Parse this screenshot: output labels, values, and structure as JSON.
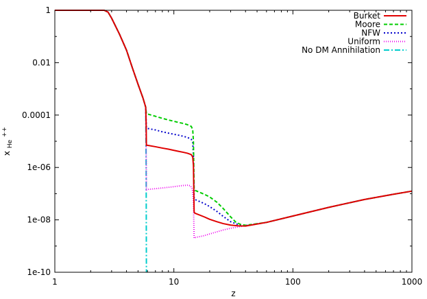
{
  "chart_data": {
    "type": "line",
    "title": "",
    "xlabel": "z",
    "ylabel_main": "x",
    "ylabel_sub": "He",
    "ylabel_sup": "++",
    "xscale": "log",
    "yscale": "log",
    "xlim": [
      1,
      1000
    ],
    "ylim": [
      1e-10,
      1
    ],
    "x_ticks": [
      1,
      10,
      100,
      1000
    ],
    "x_tick_labels": [
      "1",
      "10",
      "100",
      "1000"
    ],
    "y_ticks": [
      1e-10,
      1e-08,
      1e-06,
      0.0001,
      0.01,
      1
    ],
    "y_tick_labels": [
      "1e-10",
      "1e-08",
      "1e-06",
      "0.0001",
      "0.01",
      "1"
    ],
    "grid": false,
    "legend_position": "top-right",
    "series": [
      {
        "name": "Burket",
        "color": "#e00000",
        "dash": "solid",
        "points": [
          [
            1,
            1
          ],
          [
            2.0,
            1
          ],
          [
            2.6,
            1
          ],
          [
            2.8,
            0.85
          ],
          [
            3,
            0.5
          ],
          [
            3.5,
            0.12
          ],
          [
            4,
            0.03
          ],
          [
            4.5,
            0.006
          ],
          [
            5,
            0.0015
          ],
          [
            5.5,
            0.00045
          ],
          [
            5.8,
            0.0002
          ],
          [
            5.85,
            5e-05
          ],
          [
            5.88,
            7e-06
          ],
          [
            6,
            7e-06
          ],
          [
            7,
            6.2e-06
          ],
          [
            8,
            5.5e-06
          ],
          [
            9,
            5e-06
          ],
          [
            10,
            4.5e-06
          ],
          [
            11,
            4.1e-06
          ],
          [
            12,
            3.8e-06
          ],
          [
            13,
            3.5e-06
          ],
          [
            14,
            3.1e-06
          ],
          [
            14.4,
            2.5e-06
          ],
          [
            14.6,
            1.2e-06
          ],
          [
            14.8,
            2e-08
          ],
          [
            15,
            1.8e-08
          ],
          [
            18,
            1.3e-08
          ],
          [
            20,
            1.05e-08
          ],
          [
            23,
            8.5e-09
          ],
          [
            26,
            7.2e-09
          ],
          [
            30,
            6.3e-09
          ],
          [
            35,
            5.9e-09
          ],
          [
            40,
            5.8e-09
          ],
          [
            60,
            8e-09
          ],
          [
            100,
            1.4e-08
          ],
          [
            200,
            3e-08
          ],
          [
            400,
            6e-08
          ],
          [
            700,
            9.5e-08
          ],
          [
            1000,
            1.25e-07
          ]
        ]
      },
      {
        "name": "Moore",
        "color": "#00cc00",
        "dash": "5,3",
        "points": [
          [
            1,
            1
          ],
          [
            2.0,
            1
          ],
          [
            2.6,
            1
          ],
          [
            2.8,
            0.85
          ],
          [
            3,
            0.5
          ],
          [
            3.5,
            0.12
          ],
          [
            4,
            0.03
          ],
          [
            4.5,
            0.006
          ],
          [
            5,
            0.0015
          ],
          [
            5.5,
            0.00045
          ],
          [
            5.8,
            0.0002
          ],
          [
            5.88,
            0.00011
          ],
          [
            6,
            0.00011
          ],
          [
            7,
            9e-05
          ],
          [
            8,
            7.5e-05
          ],
          [
            9,
            6.5e-05
          ],
          [
            10,
            5.8e-05
          ],
          [
            11,
            5.2e-05
          ],
          [
            12,
            4.8e-05
          ],
          [
            13,
            4.3e-05
          ],
          [
            14,
            3.7e-05
          ],
          [
            14.4,
            2.8e-05
          ],
          [
            14.6,
            1e-05
          ],
          [
            14.8,
            1.5e-07
          ],
          [
            15,
            1.35e-07
          ],
          [
            18,
            9.5e-08
          ],
          [
            20,
            7.5e-08
          ],
          [
            23,
            4.7e-08
          ],
          [
            26,
            2.7e-08
          ],
          [
            30,
            1.3e-08
          ],
          [
            33,
            8.3e-09
          ],
          [
            36,
            6.8e-09
          ],
          [
            40,
            6.2e-09
          ],
          [
            60,
            8e-09
          ],
          [
            100,
            1.4e-08
          ],
          [
            200,
            3e-08
          ],
          [
            400,
            6e-08
          ],
          [
            700,
            9.5e-08
          ],
          [
            1000,
            1.25e-07
          ]
        ]
      },
      {
        "name": "NFW",
        "color": "#0000cc",
        "dash": "2,3",
        "points": [
          [
            1,
            1
          ],
          [
            2.0,
            1
          ],
          [
            2.6,
            1
          ],
          [
            2.8,
            0.85
          ],
          [
            3,
            0.5
          ],
          [
            3.5,
            0.12
          ],
          [
            4,
            0.03
          ],
          [
            4.5,
            0.006
          ],
          [
            5,
            0.0015
          ],
          [
            5.5,
            0.00045
          ],
          [
            5.8,
            0.0002
          ],
          [
            5.88,
            3.3e-05
          ],
          [
            6,
            3.1e-05
          ],
          [
            7,
            2.7e-05
          ],
          [
            8,
            2.3e-05
          ],
          [
            9,
            2.05e-05
          ],
          [
            10,
            1.85e-05
          ],
          [
            11,
            1.7e-05
          ],
          [
            12,
            1.55e-05
          ],
          [
            13,
            1.4e-05
          ],
          [
            14,
            1.2e-05
          ],
          [
            14.4,
            9e-06
          ],
          [
            14.6,
            3e-06
          ],
          [
            14.8,
            6.5e-08
          ],
          [
            15,
            6e-08
          ],
          [
            18,
            4.2e-08
          ],
          [
            20,
            3.2e-08
          ],
          [
            23,
            2.1e-08
          ],
          [
            26,
            1.35e-08
          ],
          [
            30,
            8.5e-09
          ],
          [
            35,
            6.5e-09
          ],
          [
            40,
            6e-09
          ],
          [
            60,
            8e-09
          ],
          [
            100,
            1.4e-08
          ],
          [
            200,
            3e-08
          ],
          [
            400,
            6e-08
          ],
          [
            700,
            9.5e-08
          ],
          [
            1000,
            1.25e-07
          ]
        ]
      },
      {
        "name": "Uniform",
        "color": "#ee00ee",
        "dash": "1,2",
        "points": [
          [
            1,
            1
          ],
          [
            2.0,
            1
          ],
          [
            2.6,
            1
          ],
          [
            2.8,
            0.85
          ],
          [
            3,
            0.5
          ],
          [
            3.5,
            0.12
          ],
          [
            4,
            0.03
          ],
          [
            4.5,
            0.006
          ],
          [
            5,
            0.0015
          ],
          [
            5.5,
            0.00045
          ],
          [
            5.8,
            0.0002
          ],
          [
            5.85,
            1e-05
          ],
          [
            5.88,
            1.4e-07
          ],
          [
            6,
            1.45e-07
          ],
          [
            7,
            1.55e-07
          ],
          [
            8,
            1.65e-07
          ],
          [
            9,
            1.75e-07
          ],
          [
            10,
            1.85e-07
          ],
          [
            11,
            1.95e-07
          ],
          [
            12,
            2.05e-07
          ],
          [
            13,
            2.1e-07
          ],
          [
            13.8,
            2e-07
          ],
          [
            14.3,
            1.5e-07
          ],
          [
            14.6,
            5e-08
          ],
          [
            14.8,
            2e-09
          ],
          [
            15,
            2.1e-09
          ],
          [
            18,
            2.5e-09
          ],
          [
            20,
            2.9e-09
          ],
          [
            23,
            3.5e-09
          ],
          [
            26,
            4.1e-09
          ],
          [
            30,
            4.8e-09
          ],
          [
            35,
            5.4e-09
          ],
          [
            40,
            6e-09
          ],
          [
            60,
            8e-09
          ],
          [
            100,
            1.4e-08
          ],
          [
            200,
            3e-08
          ],
          [
            400,
            6e-08
          ],
          [
            700,
            9.5e-08
          ],
          [
            1000,
            1.25e-07
          ]
        ]
      },
      {
        "name": "No DM Annihilation",
        "color": "#00cccc",
        "dash": "8,3,2,3",
        "points": [
          [
            1,
            1
          ],
          [
            2.0,
            1
          ],
          [
            2.6,
            1
          ],
          [
            2.8,
            0.85
          ],
          [
            3,
            0.5
          ],
          [
            3.5,
            0.12
          ],
          [
            4,
            0.03
          ],
          [
            4.5,
            0.006
          ],
          [
            5,
            0.0015
          ],
          [
            5.5,
            0.00045
          ],
          [
            5.8,
            0.0002
          ],
          [
            5.85,
            1e-06
          ],
          [
            5.88,
            1e-10
          ]
        ]
      }
    ]
  }
}
